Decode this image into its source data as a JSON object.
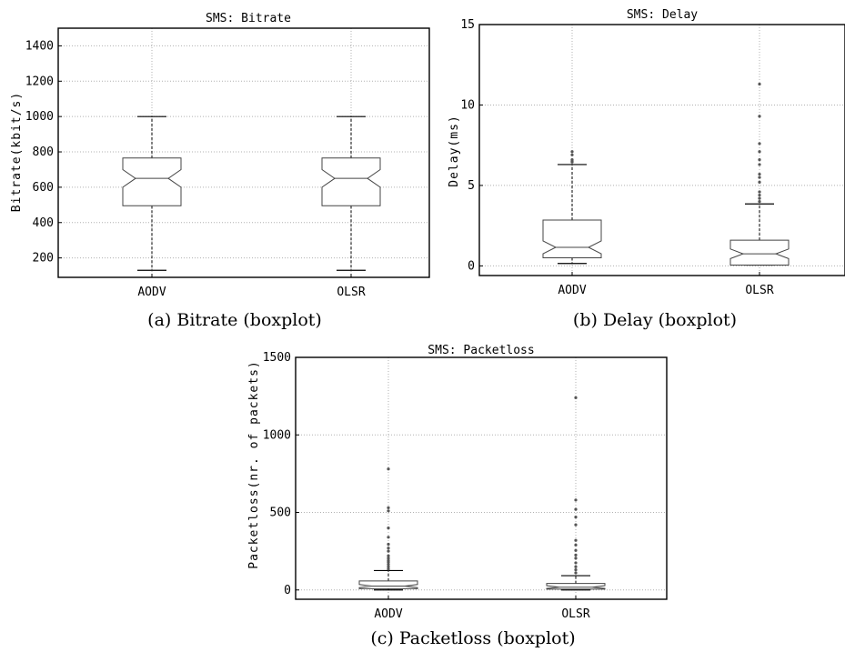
{
  "captions": [
    "(a) Bitrate (boxplot)",
    "(b) Delay (boxplot)",
    "(c) Packetloss (boxplot)"
  ],
  "chart_data": [
    {
      "type": "boxplot",
      "title": "SMS: Bitrate",
      "ylabel": "Bitrate(kbit/s)",
      "xlabel": "",
      "categories": [
        "AODV",
        "OLSR"
      ],
      "ylim": [
        90,
        1500
      ],
      "yticks": [
        200,
        400,
        600,
        800,
        1000,
        1200,
        1400
      ],
      "grid": true,
      "notched": true,
      "boxes": [
        {
          "name": "AODV",
          "whisker_low": 130,
          "q1": 495,
          "median": 650,
          "q3": 765,
          "whisker_high": 1000,
          "notch_low": 600,
          "notch_high": 700,
          "fliers": []
        },
        {
          "name": "OLSR",
          "whisker_low": 130,
          "q1": 495,
          "median": 650,
          "q3": 765,
          "whisker_high": 1000,
          "notch_low": 600,
          "notch_high": 700,
          "fliers": []
        }
      ]
    },
    {
      "type": "boxplot",
      "title": "SMS: Delay",
      "ylabel": "Delay(ms)",
      "xlabel": "",
      "categories": [
        "AODV",
        "OLSR"
      ],
      "ylim": [
        -0.6,
        15
      ],
      "yticks": [
        0,
        5,
        10,
        15
      ],
      "grid": true,
      "notched": true,
      "boxes": [
        {
          "name": "AODV",
          "whisker_low": 0.15,
          "q1": 0.5,
          "median": 1.15,
          "q3": 2.85,
          "whisker_high": 6.3,
          "notch_low": 0.75,
          "notch_high": 1.55,
          "fliers": [
            6.45,
            6.5,
            6.6,
            6.9,
            7.1
          ]
        },
        {
          "name": "OLSR",
          "whisker_low": 0.05,
          "q1": 0.05,
          "median": 0.75,
          "q3": 1.6,
          "whisker_high": 3.85,
          "notch_low": 0.45,
          "notch_high": 1.05,
          "fliers": [
            4.0,
            4.2,
            4.4,
            4.6,
            5.2,
            5.5,
            5.7,
            6.3,
            6.6,
            7.1,
            7.6,
            9.3,
            11.3
          ]
        }
      ]
    },
    {
      "type": "boxplot",
      "title": "SMS: Packetloss",
      "ylabel": "Packetloss(nr. of packets)",
      "xlabel": "",
      "categories": [
        "AODV",
        "OLSR"
      ],
      "ylim": [
        -60,
        1500
      ],
      "yticks": [
        0,
        500,
        1000,
        1500
      ],
      "grid": true,
      "notched": true,
      "boxes": [
        {
          "name": "AODV",
          "whisker_low": 0,
          "q1": 8,
          "median": 25,
          "q3": 58,
          "whisker_high": 125,
          "notch_low": 15,
          "notch_high": 35,
          "fliers": [
            135,
            150,
            165,
            180,
            190,
            205,
            220,
            250,
            270,
            295,
            340,
            400,
            510,
            530,
            780
          ]
        },
        {
          "name": "OLSR",
          "whisker_low": 0,
          "q1": 5,
          "median": 18,
          "q3": 42,
          "whisker_high": 92,
          "notch_low": 10,
          "notch_high": 28,
          "fliers": [
            110,
            130,
            150,
            175,
            205,
            225,
            255,
            290,
            320,
            420,
            470,
            520,
            580,
            1240
          ]
        }
      ]
    }
  ]
}
